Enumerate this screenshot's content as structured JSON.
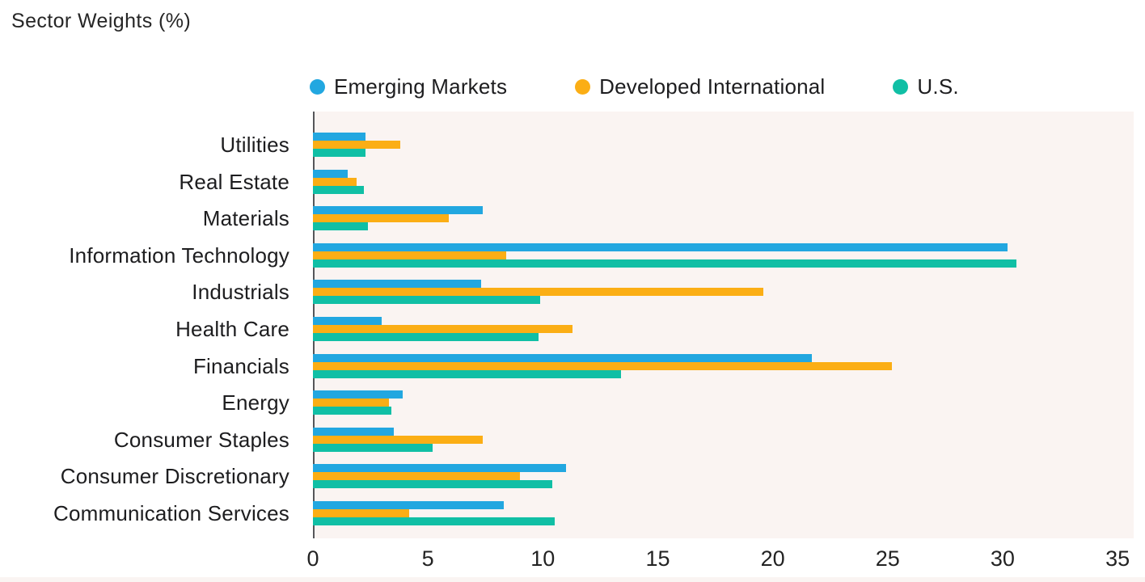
{
  "page_title": "Sector Weights (%)",
  "colors": {
    "emerging_markets": "#22A7E0",
    "developed_international": "#FBAE15",
    "us": "#10BFA5",
    "plot_background": "#FAF4F2",
    "axis_line": "#55565A",
    "text": "#1D1D1F"
  },
  "chart_data": {
    "type": "bar",
    "orientation": "horizontal",
    "title": "Sector Weights (%)",
    "xlabel": "",
    "ylabel": "",
    "grid": false,
    "legend_position": "top",
    "xlim": [
      0,
      35.7
    ],
    "xticks": [
      0,
      5,
      10,
      15,
      20,
      25,
      30,
      35
    ],
    "categories": [
      "Utilities",
      "Real Estate",
      "Materials",
      "Information Technology",
      "Industrials",
      "Health Care",
      "Financials",
      "Energy",
      "Consumer Staples",
      "Consumer Discretionary",
      "Communication Services"
    ],
    "series": [
      {
        "name": "Emerging Markets",
        "color": "#22A7E0",
        "values": [
          2.3,
          1.5,
          7.4,
          30.2,
          7.3,
          3.0,
          21.7,
          3.9,
          3.5,
          11.0,
          8.3
        ]
      },
      {
        "name": "Developed International",
        "color": "#FBAE15",
        "values": [
          3.8,
          1.9,
          5.9,
          8.4,
          19.6,
          11.3,
          25.2,
          3.3,
          7.4,
          9.0,
          4.2
        ]
      },
      {
        "name": "U.S.",
        "color": "#10BFA5",
        "values": [
          2.3,
          2.2,
          2.4,
          30.6,
          9.9,
          9.8,
          13.4,
          3.4,
          5.2,
          10.4,
          10.5
        ]
      }
    ]
  }
}
